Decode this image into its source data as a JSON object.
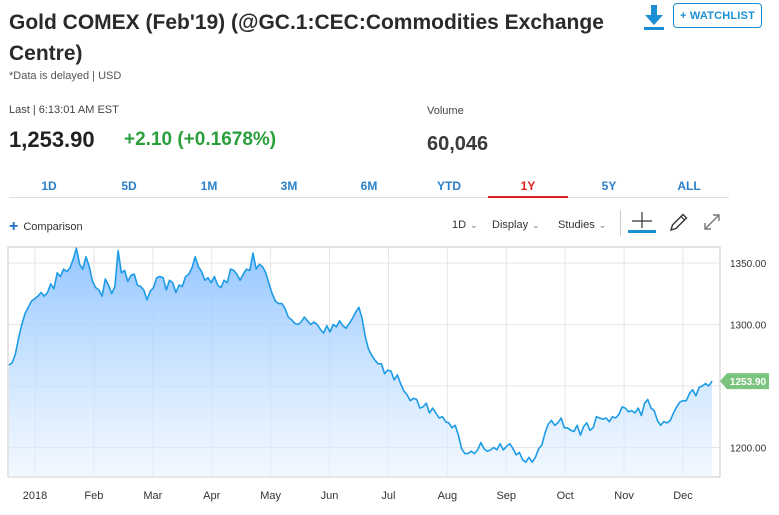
{
  "header": {
    "title": "Gold COMEX (Feb'19) (@GC.1:CEC:Commodities Exchange Centre)",
    "disclaimer": "*Data is delayed | USD",
    "watchlist_label": "+ WATCHLIST",
    "download_icon": "download-icon"
  },
  "quote": {
    "last_label": "Last | 6:13:01 AM EST",
    "last_price": "1,253.90",
    "change": "+2.10 (+0.1678%)",
    "change_color": "#2b9e3c",
    "volume_label": "Volume",
    "volume": "60,046"
  },
  "ranges": [
    {
      "label": "1D",
      "active": false
    },
    {
      "label": "5D",
      "active": false
    },
    {
      "label": "1M",
      "active": false
    },
    {
      "label": "3M",
      "active": false
    },
    {
      "label": "6M",
      "active": false
    },
    {
      "label": "YTD",
      "active": false
    },
    {
      "label": "1Y",
      "active": true
    },
    {
      "label": "5Y",
      "active": false
    },
    {
      "label": "ALL",
      "active": false
    }
  ],
  "toolbar": {
    "comparison_label": "Comparison",
    "interval_label": "1D",
    "display_label": "Display",
    "studies_label": "Studies",
    "icons": [
      "crosshair-icon",
      "pencil-icon",
      "expand-icon"
    ]
  },
  "colors": {
    "accent": "#1a8fd6",
    "line": "#1e9be6",
    "price_tag": "#7bc47f",
    "active_range": "#e02020"
  },
  "chart_data": {
    "type": "area",
    "title": "",
    "xlabel": "",
    "ylabel": "",
    "x_ticks": [
      "2018",
      "Feb",
      "Mar",
      "Apr",
      "May",
      "Jun",
      "Jul",
      "Aug",
      "Sep",
      "Oct",
      "Nov",
      "Dec"
    ],
    "y_ticks": [
      1200,
      1250,
      1300,
      1350
    ],
    "y_tick_labels": [
      "1200.00",
      "",
      "1300.00",
      "1350.00"
    ],
    "ylim": [
      1176,
      1363
    ],
    "last_value": 1253.9,
    "last_value_label": "1253.90",
    "grid": true,
    "series": [
      {
        "values": [
          1267,
          1269,
          1276,
          1289,
          1300,
          1309,
          1314,
          1319,
          1321,
          1323,
          1326,
          1323,
          1326,
          1333,
          1329,
          1342,
          1339,
          1345,
          1343,
          1346,
          1353,
          1362,
          1349,
          1345,
          1355,
          1347,
          1335,
          1330,
          1328,
          1323,
          1337,
          1332,
          1325,
          1331,
          1360,
          1342,
          1344,
          1335,
          1340,
          1341,
          1332,
          1331,
          1328,
          1320,
          1327,
          1330,
          1338,
          1339,
          1338,
          1328,
          1336,
          1334,
          1326,
          1332,
          1331,
          1339,
          1341,
          1346,
          1355,
          1347,
          1343,
          1336,
          1338,
          1334,
          1339,
          1332,
          1330,
          1336,
          1334,
          1345,
          1344,
          1341,
          1336,
          1341,
          1345,
          1344,
          1358,
          1345,
          1349,
          1347,
          1342,
          1333,
          1325,
          1319,
          1317,
          1317,
          1313,
          1306,
          1304,
          1301,
          1300,
          1302,
          1306,
          1303,
          1300,
          1302,
          1300,
          1296,
          1293,
          1299,
          1294,
          1300,
          1298,
          1303,
          1299,
          1297,
          1301,
          1305,
          1310,
          1314,
          1305,
          1290,
          1280,
          1275,
          1271,
          1268,
          1268,
          1260,
          1263,
          1262,
          1255,
          1259,
          1252,
          1246,
          1243,
          1238,
          1240,
          1239,
          1232,
          1233,
          1236,
          1228,
          1232,
          1228,
          1224,
          1225,
          1221,
          1220,
          1216,
          1218,
          1210,
          1199,
          1195,
          1195,
          1197,
          1195,
          1198,
          1204,
          1199,
          1197,
          1198,
          1200,
          1198,
          1203,
          1198,
          1201,
          1203,
          1199,
          1194,
          1196,
          1190,
          1188,
          1192,
          1188,
          1192,
          1199,
          1202,
          1212,
          1219,
          1222,
          1218,
          1220,
          1224,
          1216,
          1216,
          1214,
          1213,
          1218,
          1210,
          1217,
          1220,
          1214,
          1216,
          1225,
          1224,
          1223,
          1224,
          1221,
          1225,
          1224,
          1227,
          1233,
          1232,
          1229,
          1230,
          1228,
          1232,
          1226,
          1236,
          1239,
          1232,
          1230,
          1222,
          1218,
          1221,
          1220,
          1222,
          1228,
          1233,
          1237,
          1238,
          1238,
          1244,
          1247,
          1242,
          1249,
          1250,
          1252,
          1250,
          1254
        ]
      }
    ]
  }
}
